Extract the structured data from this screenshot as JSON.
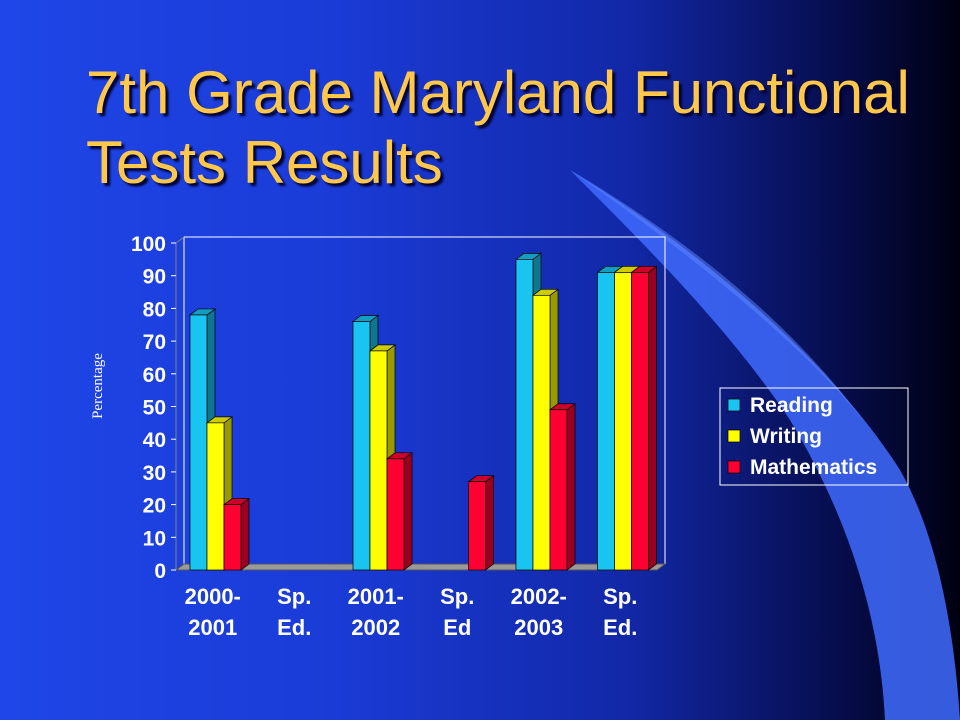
{
  "title": "7th Grade Maryland Functional Tests Results",
  "colors": {
    "Reading": "#19c4f0",
    "Writing": "#ffff00",
    "Mathematics": "#ff0033",
    "title": "#ffc84a"
  },
  "chart_data": {
    "type": "bar",
    "title": "",
    "xlabel": "",
    "ylabel": "Percentage",
    "ylim": [
      0,
      100
    ],
    "yticks": [
      0,
      10,
      20,
      30,
      40,
      50,
      60,
      70,
      80,
      90,
      100
    ],
    "grid": false,
    "legend_position": "right",
    "categories": [
      [
        "2000-",
        "2001"
      ],
      [
        "Sp.",
        "Ed."
      ],
      [
        "2001-",
        "2002"
      ],
      [
        "Sp.",
        "Ed"
      ],
      [
        "2002-",
        "2003"
      ],
      [
        "Sp.",
        "Ed."
      ]
    ],
    "series": [
      {
        "name": "Reading",
        "values": [
          78,
          null,
          76,
          null,
          95,
          91
        ]
      },
      {
        "name": "Writing",
        "values": [
          45,
          null,
          67,
          null,
          84,
          91
        ]
      },
      {
        "name": "Mathematics",
        "values": [
          20,
          null,
          34,
          27,
          49,
          91
        ]
      }
    ]
  }
}
